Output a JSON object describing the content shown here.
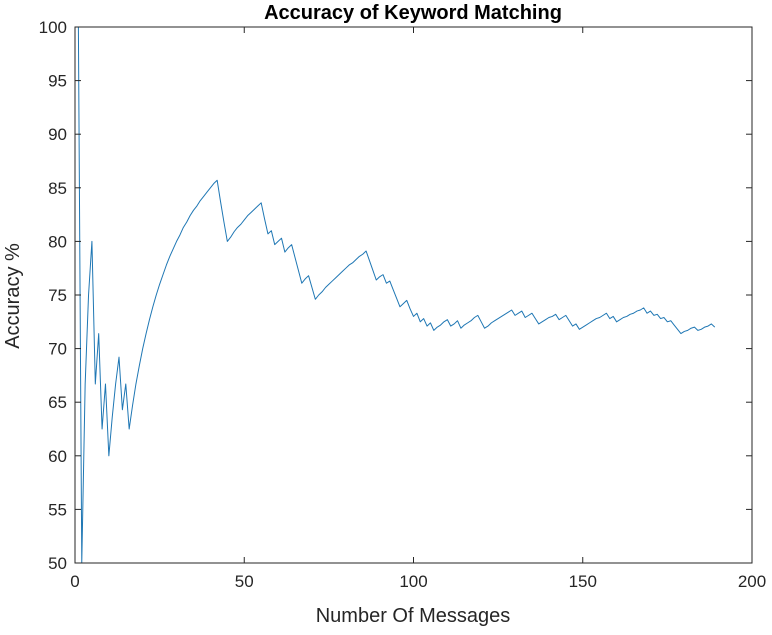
{
  "chart_data": {
    "type": "line",
    "title": "Accuracy of Keyword Matching",
    "xlabel": "Number Of Messages",
    "ylabel": "Accuracy %",
    "xlim": [
      0,
      200
    ],
    "ylim": [
      50,
      100
    ],
    "xticks": [
      0,
      50,
      100,
      150,
      200
    ],
    "yticks": [
      50,
      55,
      60,
      65,
      70,
      75,
      80,
      85,
      90,
      95,
      100
    ],
    "grid": false,
    "legend": "none",
    "series": [
      {
        "color": "#1f77b4",
        "x": [
          1,
          2,
          3,
          4,
          5,
          6,
          7,
          8,
          9,
          10,
          11,
          12,
          13,
          14,
          15,
          16,
          17,
          18,
          19,
          20,
          21,
          22,
          23,
          24,
          25,
          26,
          27,
          28,
          29,
          30,
          31,
          32,
          33,
          34,
          35,
          36,
          37,
          38,
          39,
          40,
          41,
          42,
          43,
          44,
          45,
          46,
          47,
          48,
          49,
          50,
          51,
          52,
          53,
          54,
          55,
          56,
          57,
          58,
          59,
          60,
          61,
          62,
          63,
          64,
          65,
          66,
          67,
          68,
          69,
          70,
          71,
          72,
          73,
          74,
          75,
          76,
          77,
          78,
          79,
          80,
          81,
          82,
          83,
          84,
          85,
          86,
          87,
          88,
          89,
          90,
          91,
          92,
          93,
          94,
          95,
          96,
          97,
          98,
          99,
          100,
          101,
          102,
          103,
          104,
          105,
          106,
          107,
          108,
          109,
          110,
          111,
          112,
          113,
          114,
          115,
          116,
          117,
          118,
          119,
          120,
          121,
          122,
          123,
          124,
          125,
          126,
          127,
          128,
          129,
          130,
          131,
          132,
          133,
          134,
          135,
          136,
          137,
          138,
          139,
          140,
          141,
          142,
          143,
          144,
          145,
          146,
          147,
          148,
          149,
          150,
          151,
          152,
          153,
          154,
          155,
          156,
          157,
          158,
          159,
          160,
          161,
          162,
          163,
          164,
          165,
          166,
          167,
          168,
          169,
          170,
          171,
          172,
          173,
          174,
          175,
          176,
          177,
          178,
          179,
          180,
          181,
          182,
          183,
          184,
          185,
          186,
          187,
          188,
          189
        ],
        "y": [
          100,
          50,
          66.7,
          75,
          80,
          66.7,
          71.4,
          62.5,
          66.7,
          60,
          63.6,
          66.7,
          69.2,
          64.3,
          66.7,
          62.5,
          64.7,
          66.7,
          68.4,
          70,
          71.4,
          72.7,
          73.9,
          75,
          76,
          76.9,
          77.8,
          78.6,
          79.3,
          80,
          80.6,
          81.3,
          81.8,
          82.4,
          82.9,
          83.3,
          83.8,
          84.2,
          84.6,
          85,
          85.4,
          85.7,
          83.7,
          81.8,
          80,
          80.4,
          80.9,
          81.3,
          81.6,
          82,
          82.4,
          82.7,
          83,
          83.3,
          83.6,
          82.1,
          80.7,
          81,
          79.7,
          80,
          80.3,
          79,
          79.4,
          79.7,
          78.5,
          77.3,
          76.1,
          76.5,
          76.8,
          75.7,
          74.6,
          75,
          75.3,
          75.7,
          76,
          76.3,
          76.6,
          76.9,
          77.2,
          77.5,
          77.8,
          78,
          78.3,
          78.6,
          78.8,
          79.1,
          78.2,
          77.3,
          76.4,
          76.7,
          76.9,
          76.1,
          76.3,
          75.5,
          74.7,
          73.9,
          74.2,
          74.5,
          73.7,
          73,
          73.3,
          72.5,
          72.8,
          72.1,
          72.4,
          71.7,
          72,
          72.2,
          72.5,
          72.7,
          72.1,
          72.3,
          72.6,
          71.9,
          72.2,
          72.4,
          72.6,
          72.9,
          73.1,
          72.5,
          71.9,
          72.1,
          72.4,
          72.6,
          72.8,
          73,
          73.2,
          73.4,
          73.6,
          73.1,
          73.3,
          73.5,
          72.9,
          73.1,
          73.3,
          72.8,
          72.3,
          72.5,
          72.7,
          72.9,
          73,
          73.2,
          72.7,
          72.9,
          73.1,
          72.6,
          72.1,
          72.3,
          71.8,
          72,
          72.2,
          72.4,
          72.6,
          72.8,
          72.9,
          73.1,
          73.3,
          72.8,
          73,
          72.5,
          72.7,
          72.9,
          73,
          73.2,
          73.3,
          73.5,
          73.6,
          73.8,
          73.3,
          73.5,
          73.1,
          73.2,
          72.8,
          72.9,
          72.5,
          72.6,
          72.2,
          71.8,
          71.4,
          71.6,
          71.7,
          71.9,
          72,
          71.7,
          71.8,
          72,
          72.1,
          72.3,
          72
        ]
      }
    ]
  }
}
